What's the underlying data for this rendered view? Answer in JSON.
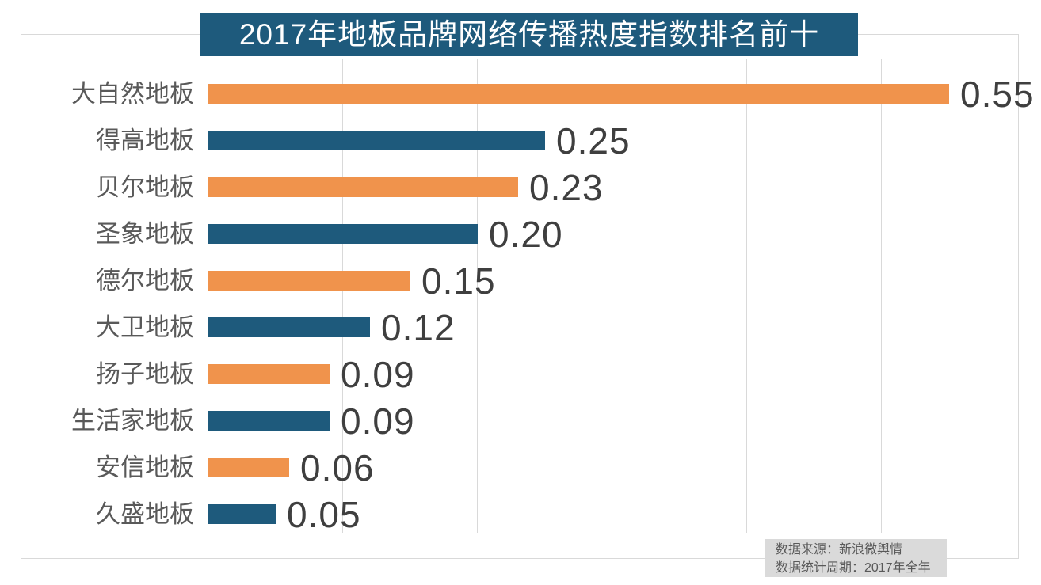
{
  "title": "2017年地板品牌网络传播热度指数排名前十",
  "chart_data": {
    "type": "bar",
    "orientation": "horizontal",
    "title": "2017年地板品牌网络传播热度指数排名前十",
    "categories": [
      "大自然地板",
      "得高地板",
      "贝尔地板",
      "圣象地板",
      "德尔地板",
      "大卫地板",
      "扬子地板",
      "生活家地板",
      "安信地板",
      "久盛地板"
    ],
    "values": [
      0.55,
      0.25,
      0.23,
      0.2,
      0.15,
      0.12,
      0.09,
      0.09,
      0.06,
      0.05
    ],
    "value_labels": [
      "0.55",
      "0.25",
      "0.23",
      "0.20",
      "0.15",
      "0.12",
      "0.09",
      "0.09",
      "0.06",
      "0.05"
    ],
    "xlim": [
      0,
      0.6
    ],
    "gridline_interval": 0.1,
    "grid": true,
    "legend": "none",
    "bar_colors_alternating": [
      "#f0934c",
      "#1e5a7c"
    ]
  },
  "colors": {
    "title_bg": "#1e5a7c",
    "title_text": "#ffffff",
    "bar_orange": "#f0934c",
    "bar_teal": "#1e5a7c",
    "gridline": "#d9d9d9",
    "frame_border": "#d9d9d9",
    "category_text": "#595959",
    "value_text": "#3f3f3f",
    "source_bg": "#dadada",
    "source_text": "#595959"
  },
  "source": {
    "line1": "数据来源：新浪微舆情",
    "line2": "数据统计周期：2017年全年"
  }
}
